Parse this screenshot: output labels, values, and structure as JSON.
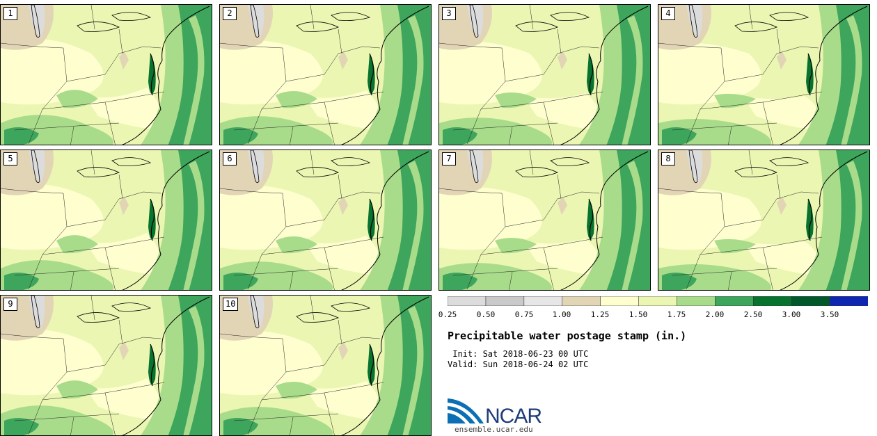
{
  "stamps": [
    {
      "number": "1"
    },
    {
      "number": "2"
    },
    {
      "number": "3"
    },
    {
      "number": "4"
    },
    {
      "number": "5"
    },
    {
      "number": "6"
    },
    {
      "number": "7"
    },
    {
      "number": "8"
    },
    {
      "number": "9"
    },
    {
      "number": "10"
    }
  ],
  "colorbar": {
    "ticks": [
      "0.25",
      "0.50",
      "0.75",
      "1.00",
      "1.25",
      "1.50",
      "1.75",
      "2.00",
      "2.50",
      "3.00",
      "3.50"
    ],
    "colors": [
      "#dcdcdc",
      "#c9c9c9",
      "#e6e6e6",
      "#e2d5b6",
      "#fefecf",
      "#eaf6b2",
      "#a9dc8a",
      "#3ea55c",
      "#07732f",
      "#02582a",
      "#0f27b0"
    ]
  },
  "title": "Precipitable water postage stamp (in.)",
  "init_line": " Init: Sat 2018-06-23 00 UTC",
  "valid_line": "Valid: Sun 2018-06-24 02 UTC",
  "logo": {
    "text": "NCAR",
    "site": "ensemble.ucar.edu"
  },
  "map_colors": {
    "ocean": "#3ea55c",
    "land_moist": "#a9dc8a",
    "land_base": "#eaf6b2",
    "land_dry": "#fefecf",
    "tan": "#e2d5b6",
    "grey": "#dcdcdc",
    "darkgreen": "#07732f"
  }
}
